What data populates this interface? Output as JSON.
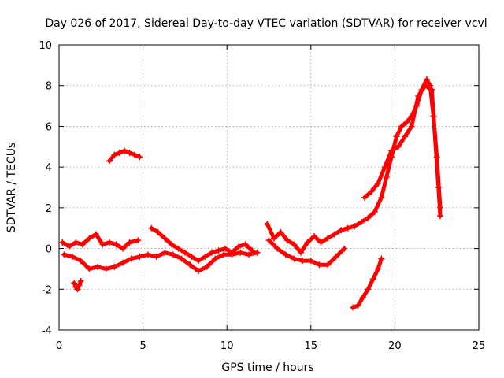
{
  "chart_data": {
    "type": "scatter",
    "title": "Day 026 of 2017, Sidereal Day-to-day VTEC variation (SDTVAR) for receiver vcvl",
    "xlabel": "GPS time / hours",
    "ylabel": "SDTVAR / TECUs",
    "xlim": [
      0,
      25
    ],
    "ylim": [
      -4,
      10
    ],
    "xticks": [
      0,
      5,
      10,
      15,
      20,
      25
    ],
    "yticks": [
      -4,
      -2,
      0,
      2,
      4,
      6,
      8,
      10
    ],
    "grid": true,
    "marker": "+",
    "color": "#ff0000",
    "series": [
      {
        "name": "upper-main",
        "points": [
          [
            0.2,
            0.3
          ],
          [
            0.6,
            0.1
          ],
          [
            1.0,
            0.3
          ],
          [
            1.4,
            0.2
          ],
          [
            1.8,
            0.5
          ],
          [
            2.2,
            0.7
          ],
          [
            2.6,
            0.2
          ],
          [
            3.0,
            0.3
          ],
          [
            3.4,
            0.2
          ],
          [
            3.8,
            0.0
          ],
          [
            4.2,
            0.3
          ],
          [
            4.7,
            0.4
          ]
        ]
      },
      {
        "name": "lower-main",
        "points": [
          [
            0.3,
            -0.3
          ],
          [
            0.8,
            -0.4
          ],
          [
            1.3,
            -0.6
          ],
          [
            1.8,
            -1.0
          ],
          [
            2.3,
            -0.9
          ],
          [
            2.8,
            -1.0
          ],
          [
            3.3,
            -0.9
          ],
          [
            3.8,
            -0.7
          ],
          [
            4.3,
            -0.5
          ],
          [
            4.8,
            -0.4
          ],
          [
            5.3,
            -0.3
          ],
          [
            5.8,
            -0.4
          ],
          [
            6.3,
            -0.2
          ],
          [
            6.8,
            -0.3
          ],
          [
            7.3,
            -0.5
          ],
          [
            7.8,
            -0.8
          ],
          [
            8.3,
            -1.1
          ],
          [
            8.8,
            -0.9
          ],
          [
            9.3,
            -0.5
          ],
          [
            9.8,
            -0.3
          ],
          [
            10.3,
            -0.3
          ],
          [
            10.8,
            -0.2
          ],
          [
            11.3,
            -0.3
          ],
          [
            11.8,
            -0.2
          ]
        ]
      },
      {
        "name": "dip",
        "points": [
          [
            0.9,
            -1.7
          ],
          [
            1.0,
            -1.9
          ],
          [
            1.1,
            -2.0
          ],
          [
            1.2,
            -1.8
          ],
          [
            1.3,
            -1.6
          ]
        ]
      },
      {
        "name": "high-arc",
        "points": [
          [
            3.0,
            4.3
          ],
          [
            3.3,
            4.6
          ],
          [
            3.6,
            4.7
          ],
          [
            3.9,
            4.8
          ],
          [
            4.2,
            4.7
          ],
          [
            4.5,
            4.6
          ],
          [
            4.8,
            4.5
          ]
        ]
      },
      {
        "name": "mid-upper",
        "points": [
          [
            5.5,
            1.0
          ],
          [
            5.9,
            0.8
          ],
          [
            6.3,
            0.5
          ],
          [
            6.7,
            0.2
          ],
          [
            7.1,
            0.0
          ],
          [
            7.5,
            -0.2
          ],
          [
            7.9,
            -0.4
          ],
          [
            8.3,
            -0.6
          ],
          [
            8.7,
            -0.4
          ],
          [
            9.1,
            -0.2
          ],
          [
            9.5,
            -0.1
          ],
          [
            9.9,
            0.0
          ],
          [
            10.3,
            -0.2
          ],
          [
            10.7,
            0.1
          ],
          [
            11.1,
            0.2
          ],
          [
            11.5,
            -0.1
          ]
        ]
      },
      {
        "name": "afternoon",
        "points": [
          [
            12.4,
            1.2
          ],
          [
            12.8,
            0.5
          ],
          [
            13.2,
            0.8
          ],
          [
            13.6,
            0.4
          ],
          [
            14.0,
            0.2
          ],
          [
            14.4,
            -0.2
          ],
          [
            14.8,
            0.3
          ],
          [
            15.2,
            0.6
          ],
          [
            15.6,
            0.3
          ],
          [
            16.0,
            0.5
          ],
          [
            16.4,
            0.7
          ],
          [
            16.8,
            0.9
          ],
          [
            17.2,
            1.0
          ],
          [
            17.6,
            1.1
          ],
          [
            18.0,
            1.3
          ],
          [
            18.4,
            1.5
          ],
          [
            18.8,
            1.8
          ],
          [
            19.2,
            2.5
          ],
          [
            19.5,
            3.5
          ],
          [
            19.8,
            4.5
          ],
          [
            20.1,
            5.5
          ],
          [
            20.4,
            6.0
          ],
          [
            20.7,
            6.2
          ],
          [
            21.0,
            6.5
          ],
          [
            21.3,
            7.0
          ],
          [
            21.6,
            7.8
          ],
          [
            21.9,
            8.3
          ],
          [
            22.1,
            8.0
          ],
          [
            22.3,
            6.5
          ],
          [
            22.5,
            4.5
          ],
          [
            22.7,
            2.0
          ]
        ]
      },
      {
        "name": "afternoon-lower",
        "points": [
          [
            12.5,
            0.4
          ],
          [
            13.0,
            0.0
          ],
          [
            13.5,
            -0.3
          ],
          [
            14.0,
            -0.5
          ],
          [
            14.5,
            -0.6
          ],
          [
            15.0,
            -0.6
          ],
          [
            15.5,
            -0.8
          ],
          [
            16.0,
            -0.8
          ],
          [
            16.5,
            -0.4
          ],
          [
            17.0,
            0.0
          ]
        ]
      },
      {
        "name": "evening-branch",
        "points": [
          [
            18.2,
            2.5
          ],
          [
            18.6,
            2.8
          ],
          [
            19.0,
            3.2
          ],
          [
            19.4,
            4.0
          ],
          [
            19.8,
            4.8
          ],
          [
            20.2,
            5.0
          ],
          [
            20.6,
            5.5
          ],
          [
            21.0,
            6.0
          ],
          [
            21.4,
            7.5
          ],
          [
            21.8,
            8.0
          ],
          [
            22.2,
            7.8
          ],
          [
            22.6,
            3.0
          ],
          [
            22.7,
            1.6
          ]
        ]
      },
      {
        "name": "negative-branch",
        "points": [
          [
            17.5,
            -2.9
          ],
          [
            17.8,
            -2.8
          ],
          [
            18.1,
            -2.4
          ],
          [
            18.4,
            -2.0
          ],
          [
            18.7,
            -1.5
          ],
          [
            19.0,
            -1.0
          ],
          [
            19.2,
            -0.5
          ]
        ]
      }
    ]
  }
}
